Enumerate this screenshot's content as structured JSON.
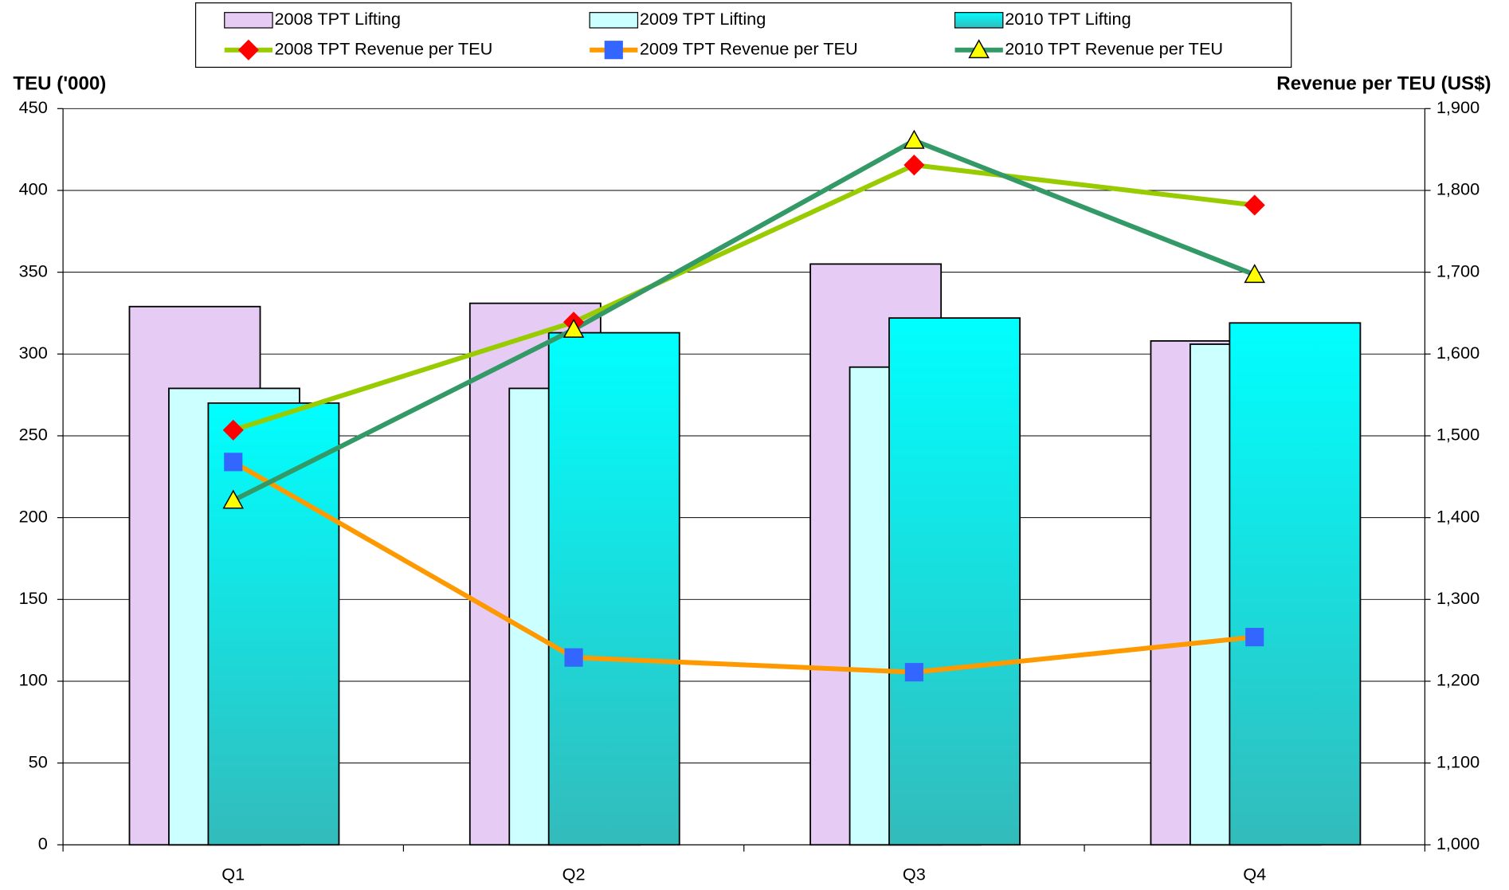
{
  "chart_data": {
    "type": "bar_line",
    "y_label": "TEU ('000)",
    "y2_label": "Revenue per TEU (US$)",
    "categories": [
      "Q1",
      "Q2",
      "Q3",
      "Q4"
    ],
    "ylim": [
      0,
      450
    ],
    "yticks": [
      0,
      50,
      100,
      150,
      200,
      250,
      300,
      350,
      400,
      450
    ],
    "y2lim": [
      1000,
      1900
    ],
    "y2ticks": [
      {
        "value": 1000,
        "label": "1,000"
      },
      {
        "value": 1100,
        "label": "1,100"
      },
      {
        "value": 1200,
        "label": "1,200"
      },
      {
        "value": 1300,
        "label": "1,300"
      },
      {
        "value": 1400,
        "label": "1,400"
      },
      {
        "value": 1500,
        "label": "1,500"
      },
      {
        "value": 1600,
        "label": "1,600"
      },
      {
        "value": 1700,
        "label": "1,700"
      },
      {
        "value": 1800,
        "label": "1,800"
      },
      {
        "value": 1900,
        "label": "1,900"
      }
    ],
    "grid": true,
    "legend": "top",
    "series": [
      {
        "name": "2008 TPT Lifting",
        "kind": "bar",
        "color": "#e6ccf5",
        "values": [
          329,
          331,
          355,
          308
        ]
      },
      {
        "name": "2009 TPT Lifting",
        "kind": "bar",
        "color": "#ccffff",
        "values": [
          279,
          279,
          292,
          306
        ]
      },
      {
        "name": "2010 TPT Lifting",
        "kind": "bar",
        "color": "#00ffff",
        "values": [
          270,
          313,
          322,
          319
        ]
      },
      {
        "name": "2008 TPT Revenue per TEU",
        "kind": "line",
        "axis": "y2",
        "color": "#99cc00",
        "marker": "diamond",
        "marker_color": "#ff0000",
        "values": [
          1507,
          1639,
          1831,
          1782
        ]
      },
      {
        "name": "2009 TPT Revenue per TEU",
        "kind": "line",
        "axis": "y2",
        "color": "#ff9900",
        "marker": "square",
        "marker_color": "#3366ff",
        "values": [
          1468,
          1229,
          1211,
          1254
        ]
      },
      {
        "name": "2010 TPT Revenue per TEU",
        "kind": "line",
        "axis": "y2",
        "color": "#339966",
        "marker": "triangle",
        "marker_color": "#ffff00",
        "values": [
          1421,
          1630,
          1861,
          1697
        ]
      }
    ]
  }
}
